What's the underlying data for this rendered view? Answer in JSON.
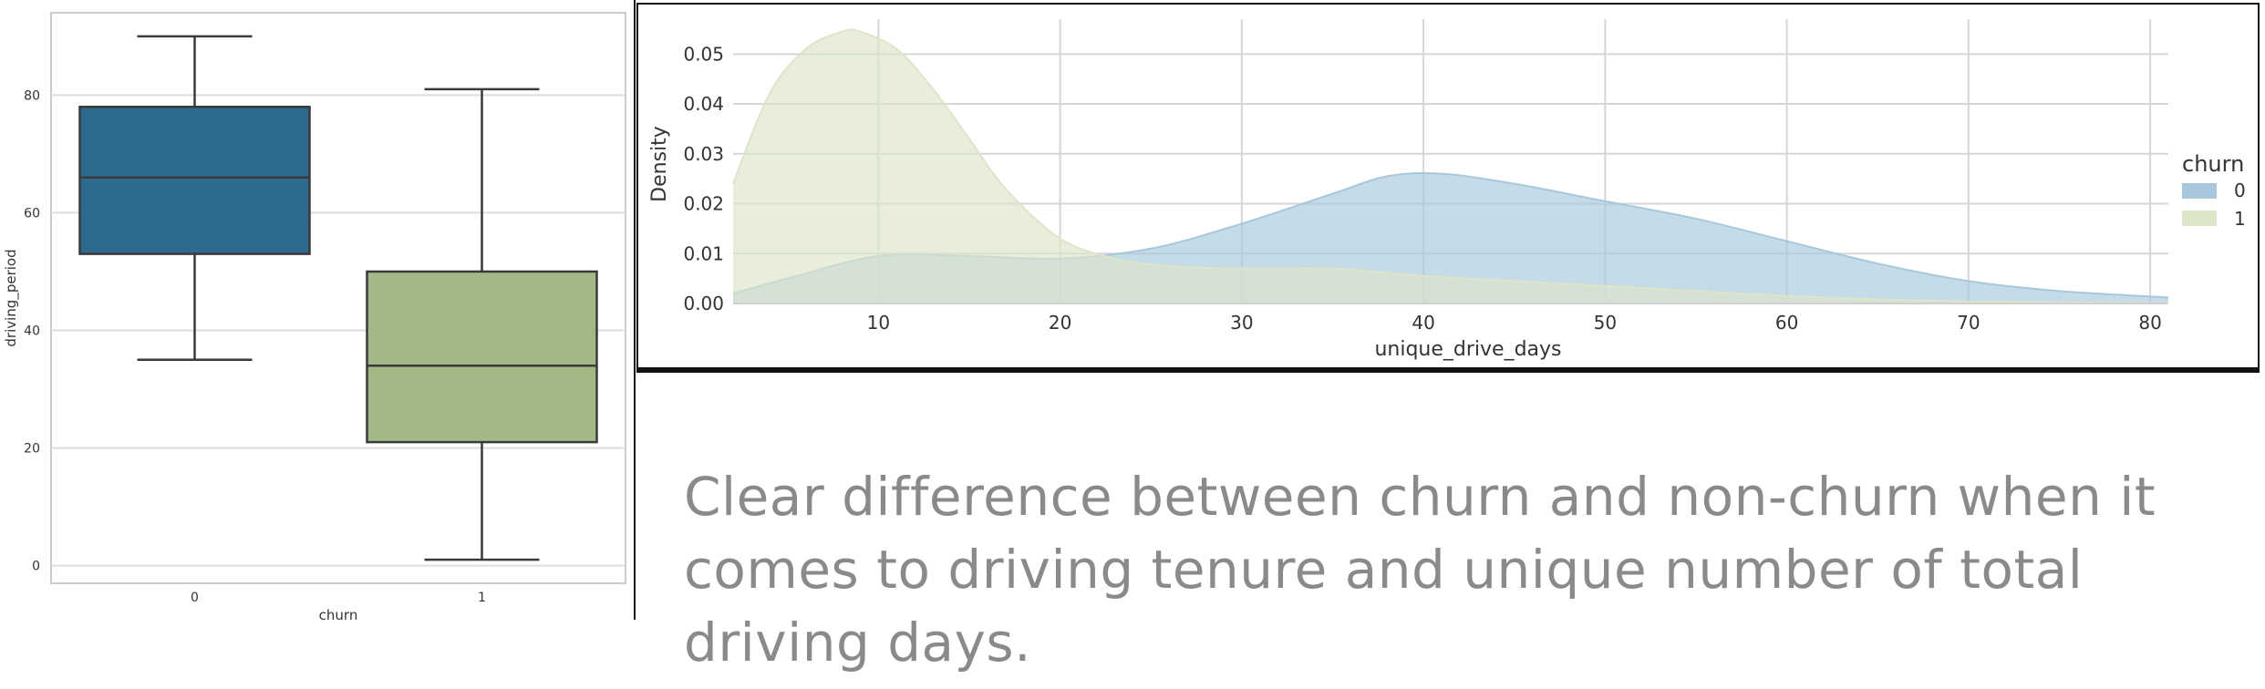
{
  "box_chart": {
    "type": "box",
    "xlabel": "churn",
    "ylabel": "driving_period",
    "categories": [
      "0",
      "1"
    ],
    "yticks": [
      0,
      20,
      40,
      60,
      80
    ],
    "ylim": [
      -3,
      94
    ],
    "grid": true,
    "boxes": [
      {
        "category": "0",
        "whisker_low": 35,
        "q1": 53,
        "median": 66,
        "q3": 78,
        "whisker_high": 90,
        "color": "#2e6a8e"
      },
      {
        "category": "1",
        "whisker_low": 1,
        "q1": 21,
        "median": 34,
        "q3": 50,
        "whisker_high": 81,
        "color": "#a2b986"
      }
    ]
  },
  "chart_data": {
    "type": "area",
    "xlabel": "unique_drive_days",
    "ylabel": "Density",
    "xlim": [
      2,
      81
    ],
    "ylim": [
      0,
      0.057
    ],
    "xticks": [
      10,
      20,
      30,
      40,
      50,
      60,
      70,
      80
    ],
    "yticks": [
      0.0,
      0.01,
      0.02,
      0.03,
      0.04,
      0.05
    ],
    "ytick_labels": [
      "0.00",
      "0.01",
      "0.02",
      "0.03",
      "0.04",
      "0.05"
    ],
    "grid": true,
    "legend": {
      "title": "churn",
      "placement": "right"
    },
    "series": [
      {
        "name": "0",
        "color": "#a7c7dc",
        "x": [
          2,
          5,
          10,
          15,
          20,
          25,
          30,
          35,
          38,
          41,
          45,
          50,
          55,
          60,
          65,
          70,
          75,
          81
        ],
        "values": [
          0.002,
          0.005,
          0.0095,
          0.0095,
          0.009,
          0.011,
          0.016,
          0.022,
          0.0255,
          0.026,
          0.024,
          0.0205,
          0.017,
          0.0125,
          0.008,
          0.0045,
          0.0025,
          0.0012
        ]
      },
      {
        "name": "1",
        "color": "#dde5c9",
        "x": [
          2,
          4,
          6,
          8,
          9,
          11,
          13,
          15,
          17,
          20,
          23,
          26,
          30,
          35,
          40,
          45,
          50,
          55,
          60,
          65,
          70,
          75,
          81
        ],
        "values": [
          0.024,
          0.042,
          0.051,
          0.0545,
          0.0545,
          0.051,
          0.043,
          0.033,
          0.023,
          0.013,
          0.009,
          0.0075,
          0.007,
          0.007,
          0.0055,
          0.0045,
          0.0035,
          0.0025,
          0.0015,
          0.0008,
          0.0004,
          0.0002,
          0.0001
        ]
      }
    ]
  },
  "caption": "Clear difference between churn and non-churn when it comes to driving tenure and unique number of total driving days."
}
